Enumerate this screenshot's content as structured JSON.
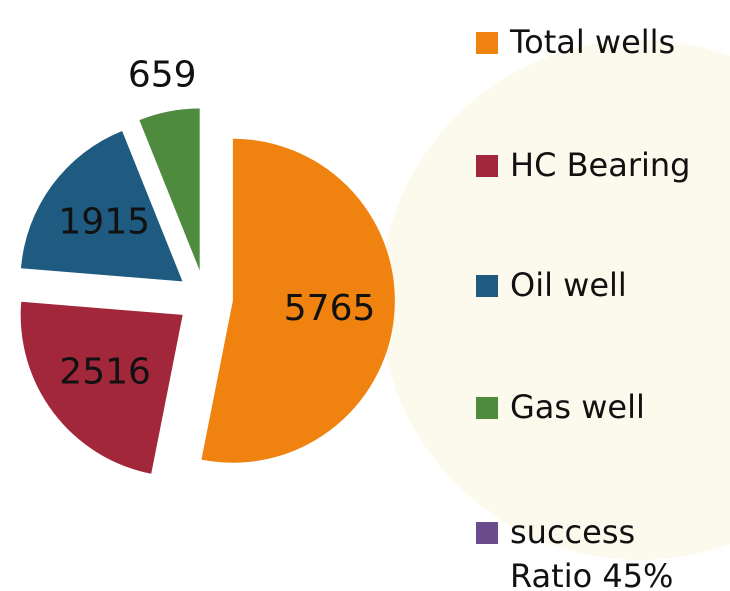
{
  "chart_data": {
    "type": "pie",
    "categories": [
      "Total wells",
      "HC Bearing",
      "Oil well",
      "Gas well",
      "success Ratio 45%"
    ],
    "values": [
      5765,
      2516,
      1915,
      659,
      null
    ],
    "colors": [
      "#f0830f",
      "#a3273b",
      "#1f5b80",
      "#4f8b3e",
      "#6b4d8d"
    ],
    "legend": "right"
  }
}
